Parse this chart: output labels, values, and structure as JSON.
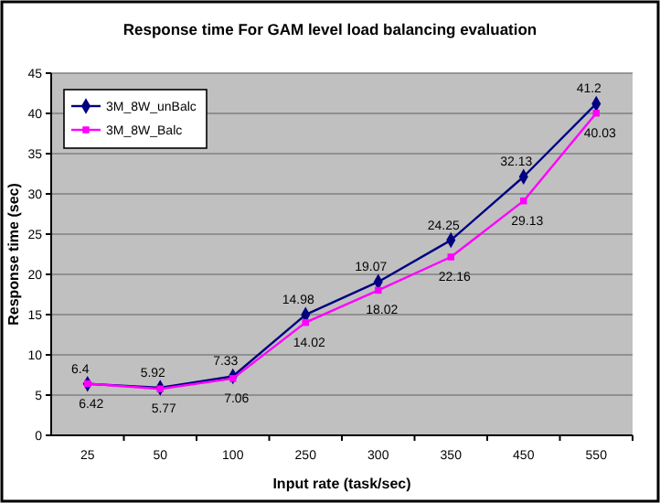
{
  "chart_data": {
    "type": "line",
    "title": "Response time For GAM level load balancing evaluation",
    "xlabel": "Input rate (task/sec)",
    "ylabel": "Response time (sec)",
    "categories": [
      "25",
      "50",
      "100",
      "250",
      "300",
      "350",
      "450",
      "550"
    ],
    "series": [
      {
        "name": "3M_8W_unBalc",
        "color": "#000080",
        "marker": "diamond",
        "values": [
          6.4,
          5.92,
          7.33,
          14.98,
          19.07,
          24.25,
          32.13,
          41.2
        ]
      },
      {
        "name": "3M_8W_Balc",
        "color": "#ff00ff",
        "marker": "square",
        "values": [
          6.42,
          5.77,
          7.06,
          14.02,
          18.02,
          22.16,
          29.13,
          40.03
        ]
      }
    ],
    "ylim": [
      0,
      45
    ],
    "yticks": [
      0,
      5,
      10,
      15,
      20,
      25,
      30,
      35,
      40,
      45
    ],
    "grid": "y",
    "legend": "top left",
    "data_labels": true,
    "line_style": "solid"
  }
}
